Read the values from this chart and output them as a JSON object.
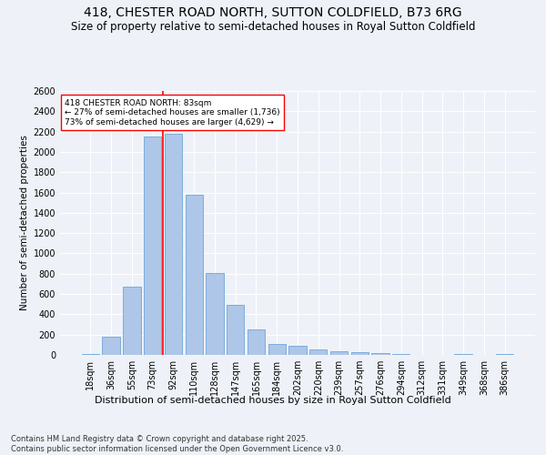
{
  "title": "418, CHESTER ROAD NORTH, SUTTON COLDFIELD, B73 6RG",
  "subtitle": "Size of property relative to semi-detached houses in Royal Sutton Coldfield",
  "xlabel": "Distribution of semi-detached houses by size in Royal Sutton Coldfield",
  "ylabel": "Number of semi-detached properties",
  "categories": [
    "18sqm",
    "36sqm",
    "55sqm",
    "73sqm",
    "92sqm",
    "110sqm",
    "128sqm",
    "147sqm",
    "165sqm",
    "184sqm",
    "202sqm",
    "220sqm",
    "239sqm",
    "257sqm",
    "276sqm",
    "294sqm",
    "312sqm",
    "331sqm",
    "349sqm",
    "368sqm",
    "386sqm"
  ],
  "values": [
    10,
    175,
    670,
    2150,
    2175,
    1575,
    810,
    490,
    250,
    105,
    90,
    55,
    35,
    30,
    15,
    5,
    0,
    0,
    5,
    0,
    5
  ],
  "bar_color": "#aec6e8",
  "bar_edge_color": "#5b9bd5",
  "vline_bin": 3,
  "vline_color": "red",
  "annotation_text": "418 CHESTER ROAD NORTH: 83sqm\n← 27% of semi-detached houses are smaller (1,736)\n73% of semi-detached houses are larger (4,629) →",
  "annotation_box_color": "white",
  "annotation_box_edge": "red",
  "ylim": [
    0,
    2600
  ],
  "yticks": [
    0,
    200,
    400,
    600,
    800,
    1000,
    1200,
    1400,
    1600,
    1800,
    2000,
    2200,
    2400,
    2600
  ],
  "bg_color": "#eef2f8",
  "grid_color": "white",
  "footer": "Contains HM Land Registry data © Crown copyright and database right 2025.\nContains public sector information licensed under the Open Government Licence v3.0.",
  "title_fontsize": 10,
  "subtitle_fontsize": 8.5,
  "xlabel_fontsize": 8,
  "ylabel_fontsize": 7.5,
  "tick_fontsize": 7,
  "footer_fontsize": 6
}
